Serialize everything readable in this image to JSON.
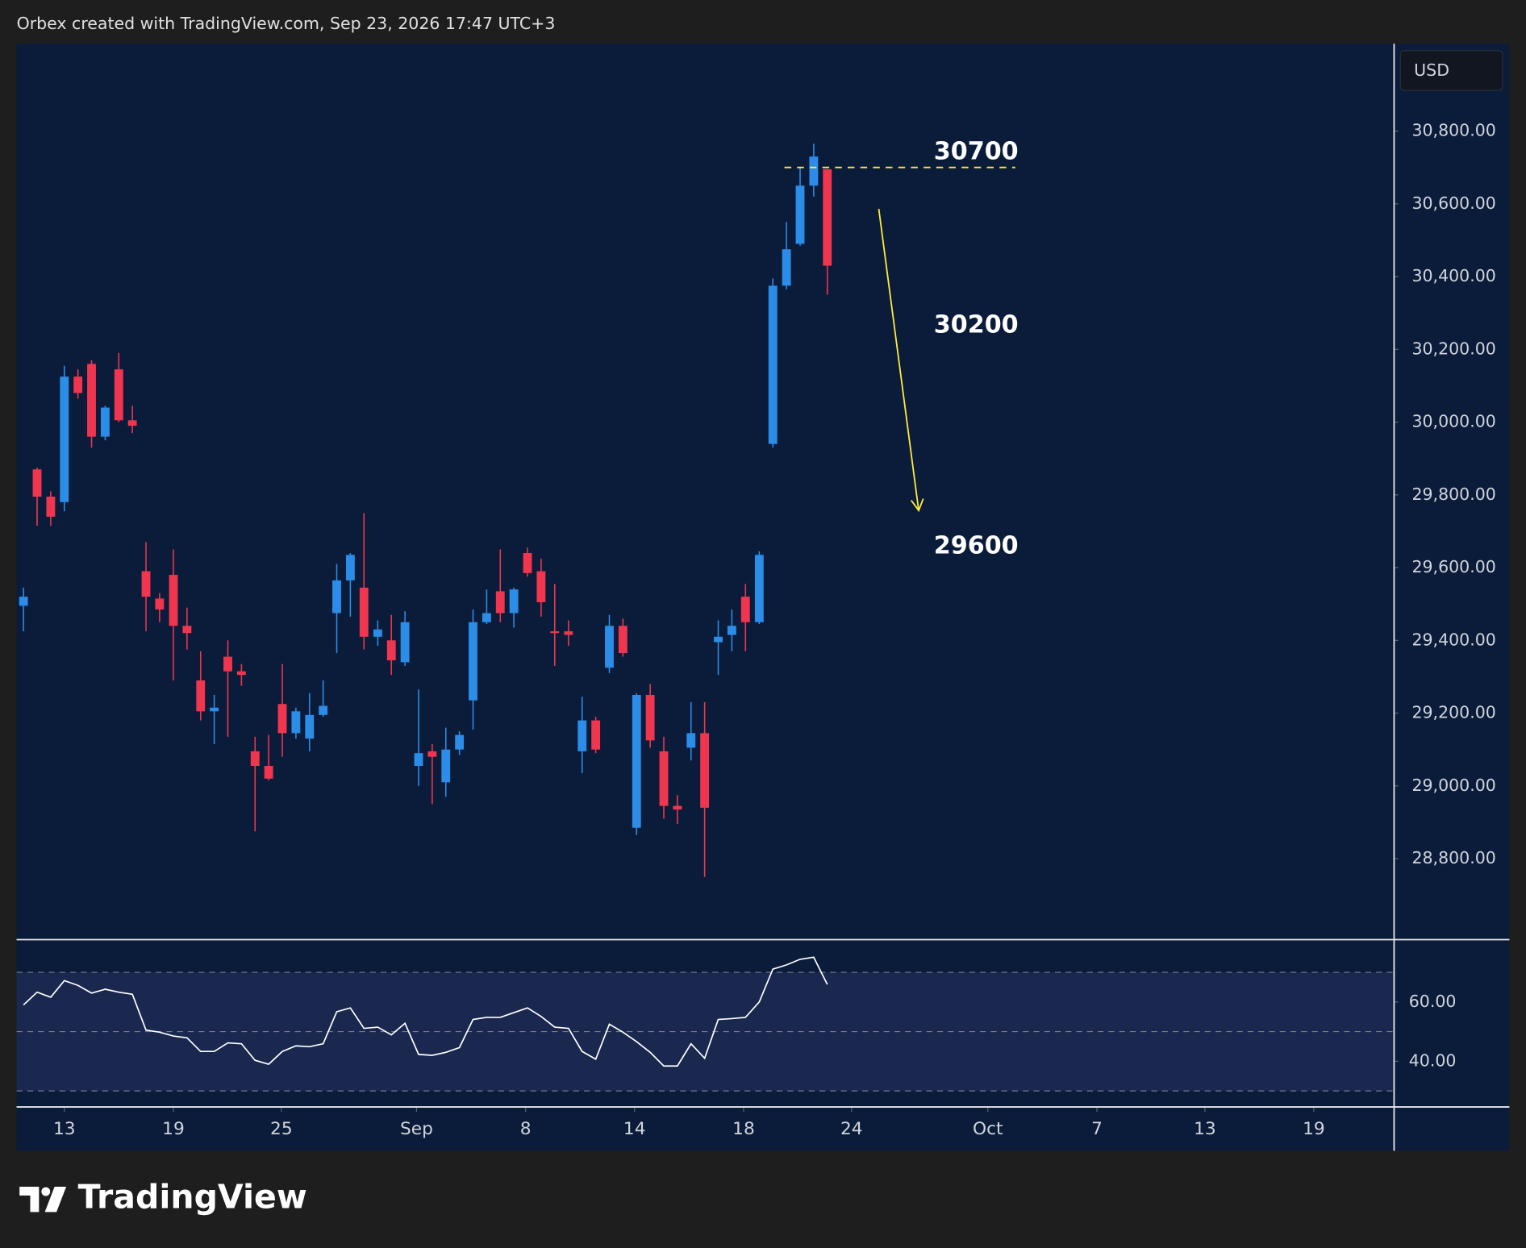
{
  "header": "Orbex created with TradingView.com, Sep 23, 2026 17:47 UTC+3",
  "brand": "TradingView",
  "chart_data": [
    {
      "type": "candlestick",
      "currency": "USD",
      "up_color": "#2b8de8",
      "down_color": "#f0364f",
      "x": [
        10.81,
        11.54,
        12.27,
        13.0,
        13.73,
        14.46,
        15.19,
        15.92,
        16.65,
        17.38,
        18.11,
        18.85,
        19.58,
        20.31,
        21.04,
        21.77,
        22.5,
        23.23,
        23.96,
        24.69,
        25.42,
        26.15,
        26.88,
        27.61,
        28.34,
        29.07,
        29.81,
        30.54,
        31.27,
        32.0,
        32.73,
        33.46,
        34.19,
        34.92,
        35.65,
        36.38,
        37.11,
        37.84,
        38.57,
        39.3,
        40.04,
        40.77,
        41.5,
        42.23,
        42.96,
        43.69,
        44.42,
        45.15,
        45.88,
        46.61,
        47.34,
        48.07,
        48.8,
        49.53,
        50.27,
        51.0,
        51.73,
        52.46,
        53.19,
        53.92
      ],
      "open": [
        29495,
        29870,
        29795,
        29780,
        30125,
        30160,
        29960,
        30145,
        30005,
        29590,
        29515,
        29580,
        29440,
        29290,
        29205,
        29355,
        29315,
        29095,
        29055,
        29225,
        29145,
        29130,
        29195,
        29475,
        29565,
        29545,
        29410,
        29400,
        29340,
        29055,
        29095,
        29010,
        29100,
        29235,
        29450,
        29535,
        29475,
        29640,
        29590,
        29425,
        29425,
        29095,
        29180,
        29325,
        29440,
        28885,
        29250,
        29095,
        28945,
        29105,
        29145,
        29395,
        29415,
        29520,
        29450,
        29940,
        30375,
        30490,
        30650,
        30695
      ],
      "high": [
        29545,
        29875,
        29810,
        30155,
        30145,
        30170,
        30045,
        30190,
        30045,
        29670,
        29530,
        29650,
        29490,
        29370,
        29250,
        29400,
        29335,
        29135,
        29140,
        29335,
        29215,
        29255,
        29290,
        29610,
        29640,
        29750,
        29455,
        29470,
        29480,
        29265,
        29115,
        29160,
        29150,
        29485,
        29540,
        29650,
        29545,
        29655,
        29625,
        29555,
        29455,
        29245,
        29190,
        29470,
        29460,
        29255,
        29280,
        29135,
        28975,
        29230,
        29230,
        29455,
        29485,
        29555,
        29645,
        30395,
        30550,
        30700,
        30765,
        30695
      ],
      "low": [
        29425,
        29715,
        29715,
        29755,
        30065,
        29930,
        29950,
        30000,
        29970,
        29425,
        29450,
        29290,
        29375,
        29180,
        29115,
        29135,
        29275,
        28875,
        29015,
        29080,
        29130,
        29095,
        29190,
        29365,
        29465,
        29375,
        29385,
        29305,
        29330,
        29000,
        28950,
        28970,
        29085,
        29155,
        29445,
        29450,
        29435,
        29575,
        29465,
        29330,
        29385,
        29035,
        29090,
        29310,
        29355,
        28865,
        29105,
        28910,
        28895,
        29070,
        28750,
        29305,
        29370,
        29370,
        29445,
        29930,
        30365,
        30485,
        30620,
        30350
      ],
      "close": [
        29520,
        29795,
        29740,
        30125,
        30080,
        29960,
        30040,
        30005,
        29990,
        29520,
        29485,
        29440,
        29420,
        29205,
        29215,
        29315,
        29305,
        29055,
        29020,
        29145,
        29205,
        29195,
        29220,
        29565,
        29635,
        29410,
        29430,
        29345,
        29450,
        29090,
        29080,
        29100,
        29140,
        29450,
        29475,
        29475,
        29540,
        29585,
        29505,
        29420,
        29415,
        29180,
        29100,
        29440,
        29365,
        29250,
        29125,
        28945,
        28935,
        29145,
        28940,
        29410,
        29440,
        29450,
        29635,
        30375,
        30475,
        30650,
        30730,
        30430
      ],
      "xlim": [
        10.44,
        84.29
      ],
      "xticks": [
        {
          "value": 13,
          "label": "13"
        },
        {
          "value": 18.85,
          "label": "19"
        },
        {
          "value": 24.64,
          "label": "25"
        },
        {
          "value": 31.89,
          "label": "Sep"
        },
        {
          "value": 37.74,
          "label": "8"
        },
        {
          "value": 43.58,
          "label": "14"
        },
        {
          "value": 49.43,
          "label": "18"
        },
        {
          "value": 55.22,
          "label": "24"
        },
        {
          "value": 62.53,
          "label": "Oct"
        },
        {
          "value": 68.38,
          "label": "7"
        },
        {
          "value": 74.17,
          "label": "13"
        },
        {
          "value": 80.01,
          "label": "19"
        }
      ],
      "ylim": [
        28580,
        31040
      ],
      "yticks": [
        {
          "value": 28800,
          "label": "28,800.00"
        },
        {
          "value": 29000,
          "label": "29,000.00"
        },
        {
          "value": 29200,
          "label": "29,200.00"
        },
        {
          "value": 29400,
          "label": "29,400.00"
        },
        {
          "value": 29600,
          "label": "29,600.00"
        },
        {
          "value": 29800,
          "label": "29,800.00"
        },
        {
          "value": 30000,
          "label": "30,000.00"
        },
        {
          "value": 30200,
          "label": "30,200.00"
        },
        {
          "value": 30400,
          "label": "30,400.00"
        },
        {
          "value": 30600,
          "label": "30,600.00"
        },
        {
          "value": 30800,
          "label": "30,800.00"
        }
      ],
      "grid": false,
      "level": {
        "value": 30700,
        "x": [
          51.62,
          64.0
        ],
        "color": "#ffeb3b"
      },
      "arrow": {
        "x": [
          56.68,
          58.82
        ],
        "y": [
          30586,
          29757
        ],
        "color": "#ffeb3b"
      },
      "annotations": [
        {
          "text": "30700",
          "x": 61.9,
          "y": 30741
        },
        {
          "text": "30200",
          "x": 61.9,
          "y": 30265
        },
        {
          "text": "29600",
          "x": 61.9,
          "y": 29658
        }
      ]
    },
    {
      "type": "line",
      "color": "#ffffff",
      "band_color": "#1a2850",
      "values": [
        59.0,
        63.3,
        61.6,
        67.2,
        65.6,
        63.0,
        64.3,
        63.3,
        62.6,
        50.5,
        49.8,
        48.5,
        47.9,
        43.3,
        43.3,
        46.2,
        45.9,
        40.3,
        39.0,
        43.3,
        45.2,
        44.9,
        45.9,
        56.7,
        58.0,
        51.1,
        51.5,
        48.9,
        52.8,
        42.3,
        42.0,
        43.0,
        44.6,
        54.1,
        54.8,
        54.8,
        56.4,
        58.0,
        55.1,
        51.5,
        51.1,
        43.3,
        40.7,
        52.5,
        49.8,
        46.6,
        43.0,
        38.4,
        38.4,
        45.9,
        41.0,
        54.1,
        54.4,
        54.8,
        60.0,
        71.1,
        72.5,
        74.4,
        75.1,
        65.9
      ],
      "ylim": [
        24.9,
        80.7
      ],
      "yticks": [
        {
          "value": 40,
          "label": "40.00"
        },
        {
          "value": 60,
          "label": "60.00"
        }
      ],
      "band": [
        30,
        70
      ],
      "levels": [
        70,
        50,
        30
      ]
    }
  ]
}
